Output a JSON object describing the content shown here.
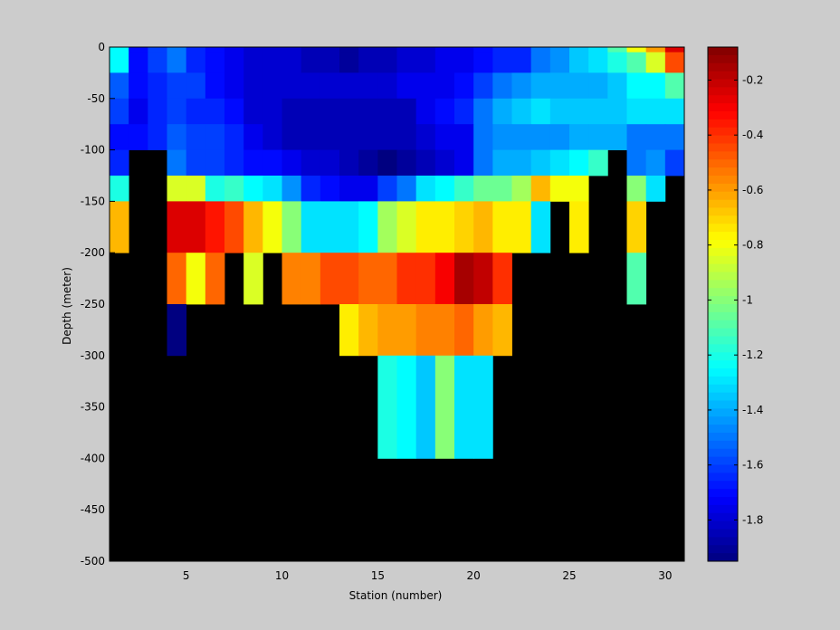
{
  "chart_data": {
    "type": "heatmap",
    "xlabel": "Station (number)",
    "ylabel": "Depth (meter)",
    "xlim": [
      1,
      31
    ],
    "ylim": [
      -500,
      0
    ],
    "x_ticks": [
      5,
      10,
      15,
      20,
      25,
      30
    ],
    "y_ticks": [
      0,
      -50,
      -100,
      -150,
      -200,
      -250,
      -300,
      -350,
      -400,
      -450,
      -500
    ],
    "colorbar": {
      "colormap": "jet",
      "range": [
        -1.95,
        -0.08
      ],
      "ticks": [
        -0.2,
        -0.4,
        -0.6,
        -0.8,
        -1,
        -1.2,
        -1.4,
        -1.6,
        -1.8
      ]
    },
    "background_color": "#000000",
    "station_centers": [
      1.5,
      2.5,
      3.5,
      4.5,
      5.5,
      6.5,
      7.5,
      8.5,
      9.5,
      10.5,
      11.5,
      12.5,
      13.5,
      14.5,
      15.5,
      16.5,
      17.5,
      18.5,
      19.5,
      20.5,
      21.5,
      22.5,
      23.5,
      24.5,
      25.5,
      26.5,
      27.5,
      28.5,
      29.5,
      30.5
    ],
    "depth_bins": [
      [
        -5,
        0
      ],
      [
        -25,
        -5
      ],
      [
        -50,
        -25
      ],
      [
        -75,
        -50
      ],
      [
        -100,
        -75
      ],
      [
        -125,
        -100
      ],
      [
        -150,
        -125
      ],
      [
        -200,
        -150
      ],
      [
        -250,
        -200
      ],
      [
        -300,
        -250
      ],
      [
        -400,
        -300
      ]
    ],
    "values": [
      [
        -1.25,
        -1.7,
        -1.6,
        -1.5,
        -1.65,
        -1.7,
        -1.75,
        -1.8,
        -1.8,
        -1.8,
        -1.85,
        -1.85,
        -1.9,
        -1.85,
        -1.85,
        -1.8,
        -1.8,
        -1.75,
        -1.75,
        -1.7,
        -1.65,
        -1.65,
        -1.5,
        -1.45,
        -1.35,
        -1.3,
        -1.1,
        -0.8,
        -0.6,
        -0.25
      ],
      [
        -1.25,
        -1.7,
        -1.6,
        -1.5,
        -1.65,
        -1.7,
        -1.75,
        -1.8,
        -1.8,
        -1.8,
        -1.85,
        -1.85,
        -1.9,
        -1.85,
        -1.85,
        -1.8,
        -1.8,
        -1.75,
        -1.75,
        -1.7,
        -1.65,
        -1.65,
        -1.5,
        -1.45,
        -1.35,
        -1.3,
        -1.2,
        -1.1,
        -0.85,
        -0.45
      ],
      [
        -1.55,
        -1.7,
        -1.65,
        -1.6,
        -1.6,
        -1.7,
        -1.75,
        -1.8,
        -1.8,
        -1.8,
        -1.8,
        -1.8,
        -1.8,
        -1.8,
        -1.8,
        -1.75,
        -1.75,
        -1.75,
        -1.7,
        -1.6,
        -1.5,
        -1.45,
        -1.4,
        -1.4,
        -1.4,
        -1.4,
        -1.35,
        -1.25,
        -1.25,
        -1.1
      ],
      [
        -1.6,
        -1.75,
        -1.65,
        -1.6,
        -1.65,
        -1.65,
        -1.7,
        -1.8,
        -1.8,
        -1.85,
        -1.85,
        -1.85,
        -1.85,
        -1.85,
        -1.85,
        -1.85,
        -1.75,
        -1.7,
        -1.65,
        -1.5,
        -1.4,
        -1.35,
        -1.3,
        -1.35,
        -1.35,
        -1.35,
        -1.35,
        -1.3,
        -1.3,
        -1.3
      ],
      [
        -1.7,
        -1.7,
        -1.65,
        -1.55,
        -1.6,
        -1.6,
        -1.65,
        -1.75,
        -1.8,
        -1.85,
        -1.85,
        -1.85,
        -1.85,
        -1.85,
        -1.85,
        -1.85,
        -1.8,
        -1.75,
        -1.75,
        -1.5,
        -1.45,
        -1.45,
        -1.45,
        -1.45,
        -1.4,
        -1.4,
        -1.4,
        -1.5,
        -1.5,
        -1.5
      ],
      [
        -1.65,
        null,
        null,
        -1.5,
        -1.6,
        -1.6,
        -1.65,
        -1.7,
        -1.7,
        -1.75,
        -1.8,
        -1.8,
        -1.85,
        -1.9,
        -1.95,
        -1.9,
        -1.85,
        -1.8,
        -1.75,
        -1.5,
        -1.4,
        -1.4,
        -1.35,
        -1.3,
        -1.25,
        -1.15,
        null,
        -1.5,
        -1.45,
        -1.6
      ],
      [
        -1.2,
        null,
        null,
        -0.85,
        -0.85,
        -1.2,
        -1.15,
        -1.25,
        -1.3,
        -1.45,
        -1.65,
        -1.7,
        -1.75,
        -1.75,
        -1.6,
        -1.5,
        -1.3,
        -1.25,
        -1.15,
        -1.05,
        -1.05,
        -0.95,
        -0.65,
        -0.8,
        -0.8,
        null,
        null,
        -1.0,
        -1.3,
        null
      ],
      [
        -0.65,
        null,
        null,
        -0.25,
        -0.25,
        -0.35,
        -0.45,
        -0.65,
        -0.8,
        -1.0,
        -1.3,
        -1.3,
        -1.3,
        -1.25,
        -0.95,
        -0.85,
        -0.75,
        -0.75,
        -0.7,
        -0.65,
        -0.75,
        -0.75,
        -1.3,
        null,
        -0.75,
        null,
        null,
        -0.7,
        null,
        null
      ],
      [
        null,
        null,
        null,
        -0.5,
        -0.8,
        -0.5,
        null,
        -0.85,
        null,
        -0.55,
        -0.55,
        -0.45,
        -0.45,
        -0.5,
        -0.5,
        -0.4,
        -0.4,
        -0.3,
        -0.15,
        -0.2,
        -0.4,
        null,
        null,
        null,
        null,
        null,
        null,
        -1.1,
        null,
        null
      ],
      [
        null,
        null,
        null,
        -1.95,
        null,
        null,
        null,
        null,
        null,
        null,
        null,
        null,
        -0.75,
        -0.65,
        -0.6,
        -0.6,
        -0.55,
        -0.55,
        -0.5,
        -0.6,
        -0.65,
        null,
        null,
        null,
        null,
        null,
        null,
        null,
        null,
        null
      ],
      [
        null,
        null,
        null,
        null,
        null,
        null,
        null,
        null,
        null,
        null,
        null,
        null,
        null,
        null,
        -1.2,
        -1.25,
        -1.35,
        -1.0,
        -1.3,
        -1.3,
        null,
        null,
        null,
        null,
        null,
        null,
        null,
        null,
        null,
        null
      ]
    ]
  }
}
